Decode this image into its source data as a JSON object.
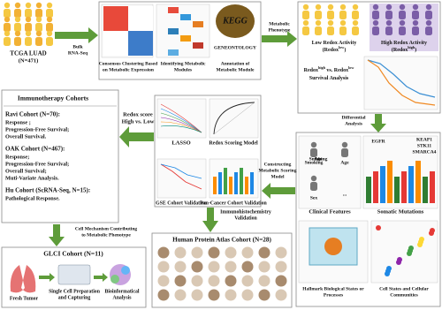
{
  "cohort": {
    "title": "TCGA LUAD",
    "n": "(N=471)"
  },
  "arrows": {
    "bulk": [
      "Bulk",
      "RNA-Seq"
    ],
    "metabolic": [
      "Metabolic",
      "Phenotype"
    ],
    "differential": [
      "Differential",
      "Analysis"
    ],
    "constructing": [
      "Constructing",
      "Metabolic Scoring",
      "Model"
    ],
    "redox_score": [
      "Redox score",
      "High vs. Low"
    ],
    "cell_mechanism": [
      "Cell Mechanism Contributing",
      "to Metabolic Phenotype"
    ],
    "ihc": [
      "Immunohistochemistry",
      "Validation"
    ]
  },
  "clustering": {
    "panels": [
      [
        "Consensus Clustering Based",
        "on Metabolic Expression"
      ],
      [
        "Identifying Metabolic",
        "Modules"
      ],
      [
        "Annotation of",
        "Metabolic Module"
      ]
    ],
    "kegg": "KEGG",
    "go": "GENEONTOLOGY"
  },
  "phenotype": {
    "low": [
      {
        "text": "Low Redox Activity"
      }
    ],
    "low_sub": [
      {
        "text": "(Redox"
      },
      {
        "text": "low",
        "sup": true
      },
      {
        "text": ")"
      }
    ],
    "high": [
      {
        "text": "High Redox Activity"
      }
    ],
    "high_sub": [
      {
        "text": "(Redox"
      },
      {
        "text": "high",
        "sup": true
      },
      {
        "text": ")"
      }
    ],
    "survival": [
      {
        "text": "Redox"
      },
      {
        "text": "high",
        "sup": true
      },
      {
        "text": " vs. Redox"
      },
      {
        "text": "low",
        "sup": true
      }
    ],
    "survival_sub": [
      {
        "text": "Survival Analysis"
      }
    ]
  },
  "features": {
    "clinical": [
      "Smoking",
      "Age",
      "Sex",
      "..."
    ],
    "clinical_title": "Clinical Features",
    "mutations": [
      "EGFR",
      "KEAP1",
      "STK11",
      "SMARCA4"
    ],
    "mutations_title": "Somatic Mutations",
    "hallmark": [
      "Hallmark Biological States or",
      "Processes"
    ],
    "cell_states": [
      "Cell States and Cellular",
      "Communities"
    ]
  },
  "model": {
    "lasso": "LASSO",
    "scoring": "Redox Scoring Model",
    "gse": "GSE Cohort Validation",
    "pan": "Pan-Cancer Cohort Validation"
  },
  "immunotherapy": {
    "title": "Immunotherapy Cohorts",
    "cohorts": [
      {
        "name": "Ravi Cohort (N=70):",
        "items": [
          "Response ;",
          "Progression-Free Survival;",
          "Overall Survival."
        ]
      },
      {
        "name": "OAK Cohort (N=467):",
        "items": [
          "Response;",
          "Progression-Free Survival;",
          "Overall Survival;",
          "Muti-Variate Analysis."
        ]
      },
      {
        "name": "Hu Cohort (ScRNA-Seq, N=15):",
        "items": [
          "Pathological Response."
        ]
      }
    ]
  },
  "glci": {
    "title": "GLCI Cohort (N=11)",
    "steps": [
      [
        "Fresh Tumor"
      ],
      [
        "Single Cell Preparation",
        "and Capturing"
      ],
      [
        "Bioinformatical",
        "Analysis"
      ]
    ]
  },
  "hpa": {
    "title": "Human Protein Atlas Cohort (N=28)"
  }
}
